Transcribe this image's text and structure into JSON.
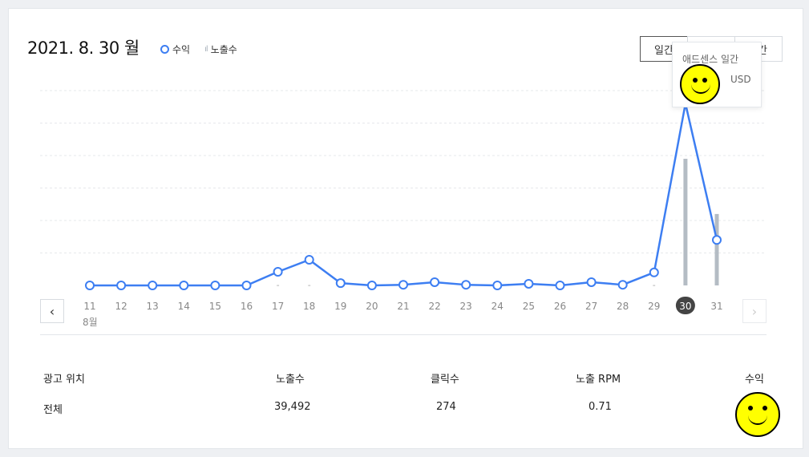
{
  "header": {
    "title": "2021. 8. 30 월"
  },
  "legend": [
    {
      "label": "수익",
      "icon": "ring-icon"
    },
    {
      "label": "노출수",
      "icon": "bar-icon"
    }
  ],
  "period_buttons": [
    {
      "label": "일간",
      "active": true
    },
    {
      "label": ""
    },
    {
      "label": "간"
    }
  ],
  "tooltip": {
    "title": "애드센스 일간",
    "unit": "USD"
  },
  "colors": {
    "revenue": "#3d7ef2",
    "impressions": "#b4bcc4",
    "selected": "#444444"
  },
  "chart_data": {
    "type": "line",
    "x": [
      "11",
      "12",
      "13",
      "14",
      "15",
      "16",
      "17",
      "18",
      "19",
      "20",
      "21",
      "22",
      "23",
      "24",
      "25",
      "26",
      "27",
      "28",
      "29",
      "30",
      "31"
    ],
    "month_label": "8월",
    "selected": "30",
    "series": [
      {
        "name": "수익",
        "type": "line",
        "values": [
          0,
          0,
          0,
          0,
          0,
          0,
          0.42,
          0.79,
          0.07,
          0,
          0.02,
          0.1,
          0.02,
          0,
          0.05,
          0,
          0.1,
          0.02,
          0.4,
          5.6,
          1.4
        ]
      },
      {
        "name": "노출수",
        "type": "bar",
        "values": [
          null,
          null,
          null,
          null,
          null,
          null,
          0,
          0,
          null,
          null,
          null,
          null,
          null,
          null,
          null,
          null,
          null,
          null,
          0,
          3.9,
          2.2
        ]
      }
    ],
    "ylim": [
      0,
      6
    ],
    "grid": true
  },
  "nav": {
    "prev": "‹",
    "next": "›"
  },
  "table": {
    "headers": [
      "광고 위치",
      "노출수",
      "클릭수",
      "노출 RPM",
      "수익"
    ],
    "rows": [
      [
        "전체",
        "39,492",
        "274",
        "0.71",
        ""
      ]
    ]
  }
}
